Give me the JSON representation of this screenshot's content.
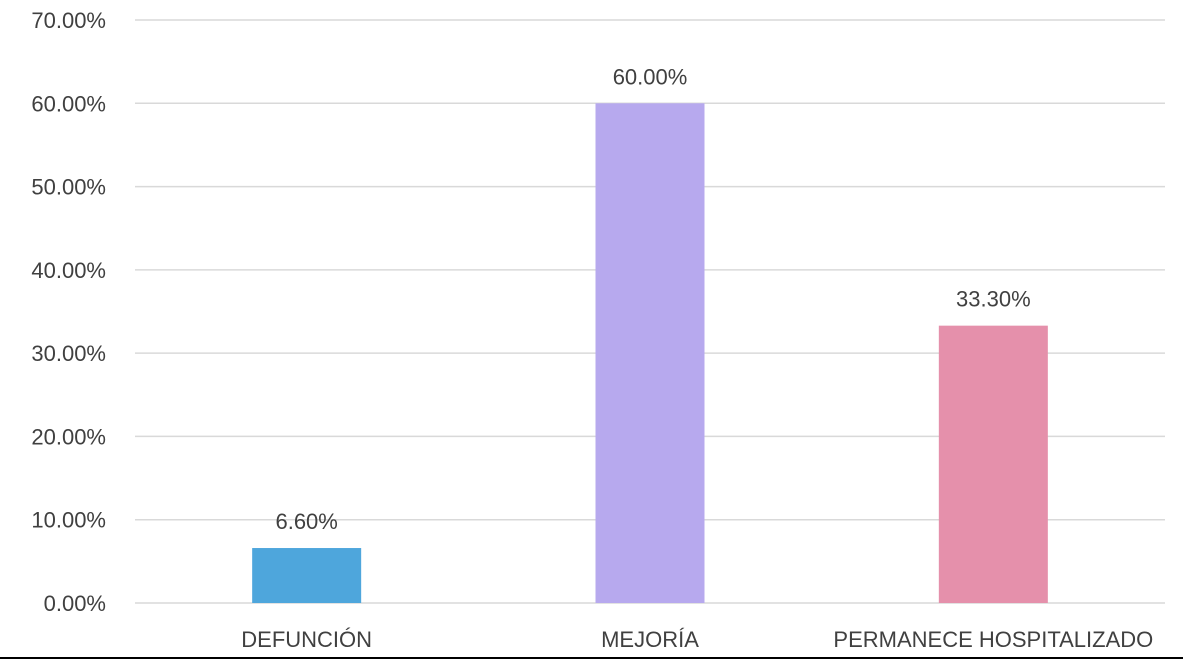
{
  "chart_data": {
    "type": "bar",
    "categories": [
      "DEFUNCIÓN",
      "MEJORÍA",
      "PERMANECE HOSPITALIZADO"
    ],
    "values": [
      6.6,
      60.0,
      33.3
    ],
    "data_labels": [
      "6.60%",
      "60.00%",
      "33.30%"
    ],
    "bar_colors": [
      "#4ea6dc",
      "#b7a9ee",
      "#e590ab"
    ],
    "ylim": [
      0,
      70
    ],
    "yticks": [
      0,
      10,
      20,
      30,
      40,
      50,
      60,
      70
    ],
    "ytick_labels": [
      "0.00%",
      "10.00%",
      "20.00%",
      "30.00%",
      "40.00%",
      "50.00%",
      "60.00%",
      "70.00%"
    ],
    "grid": true,
    "gridline_color": "#d9d9d9",
    "legend": "none"
  }
}
